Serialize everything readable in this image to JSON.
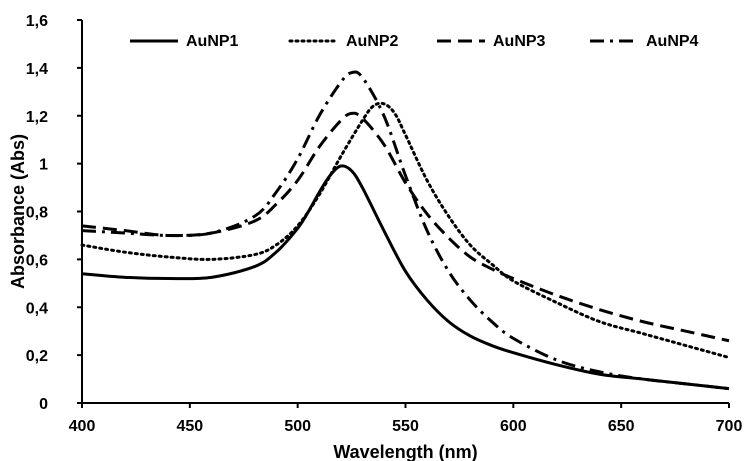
{
  "chart_data": {
    "type": "line",
    "xlabel": "Wavelength (nm)",
    "ylabel": "Absorbance (Abs)",
    "xlim": [
      400,
      700
    ],
    "ylim": [
      0,
      1.6
    ],
    "x_ticks": [
      400,
      450,
      500,
      550,
      600,
      650,
      700
    ],
    "x_tick_labels": [
      "400",
      "450",
      "500",
      "550",
      "600",
      "650",
      "700"
    ],
    "y_ticks": [
      0,
      0.2,
      0.4,
      0.6,
      0.8,
      1,
      1.2,
      1.4,
      1.6
    ],
    "y_tick_labels": [
      "0",
      "0,2",
      "0,4",
      "0,6",
      "0,8",
      "1",
      "1,2",
      "1,4",
      "1,6"
    ],
    "grid": false,
    "legend": "top",
    "series": [
      {
        "name": "AuNP1",
        "dash": "solid",
        "x": [
          400,
          420,
          440,
          460,
          480,
          490,
          500,
          505,
          510,
          515,
          520,
          525,
          530,
          540,
          550,
          560,
          570,
          580,
          590,
          600,
          620,
          640,
          660,
          680,
          700
        ],
        "y": [
          0.54,
          0.525,
          0.52,
          0.525,
          0.57,
          0.63,
          0.73,
          0.8,
          0.88,
          0.95,
          0.99,
          0.97,
          0.9,
          0.72,
          0.55,
          0.43,
          0.34,
          0.28,
          0.24,
          0.21,
          0.16,
          0.12,
          0.1,
          0.08,
          0.06
        ]
      },
      {
        "name": "AuNP2",
        "dash": "dotted",
        "x": [
          400,
          420,
          440,
          460,
          480,
          490,
          500,
          510,
          520,
          530,
          535,
          540,
          545,
          550,
          560,
          570,
          580,
          590,
          600,
          620,
          640,
          660,
          680,
          700
        ],
        "y": [
          0.66,
          0.63,
          0.61,
          0.6,
          0.62,
          0.66,
          0.74,
          0.87,
          1.03,
          1.18,
          1.24,
          1.25,
          1.21,
          1.12,
          0.93,
          0.78,
          0.66,
          0.58,
          0.51,
          0.42,
          0.34,
          0.29,
          0.24,
          0.19
        ]
      },
      {
        "name": "AuNP3",
        "dash": "dashed",
        "x": [
          400,
          420,
          440,
          460,
          480,
          490,
          500,
          510,
          520,
          525,
          530,
          540,
          550,
          560,
          570,
          580,
          590,
          600,
          620,
          640,
          660,
          680,
          700
        ],
        "y": [
          0.74,
          0.72,
          0.7,
          0.71,
          0.76,
          0.83,
          0.93,
          1.07,
          1.18,
          1.21,
          1.19,
          1.08,
          0.92,
          0.79,
          0.69,
          0.61,
          0.56,
          0.52,
          0.45,
          0.39,
          0.34,
          0.3,
          0.26
        ]
      },
      {
        "name": "AuNP4",
        "dash": "dashdot",
        "x": [
          400,
          420,
          440,
          460,
          480,
          490,
          500,
          510,
          520,
          525,
          530,
          540,
          550,
          560,
          570,
          580,
          590,
          600,
          620,
          640,
          660,
          680,
          700
        ],
        "y": [
          0.72,
          0.71,
          0.7,
          0.71,
          0.78,
          0.88,
          1.02,
          1.2,
          1.34,
          1.38,
          1.36,
          1.2,
          0.95,
          0.72,
          0.55,
          0.43,
          0.34,
          0.27,
          0.18,
          0.13,
          0.1,
          0.08,
          0.06
        ]
      }
    ]
  }
}
